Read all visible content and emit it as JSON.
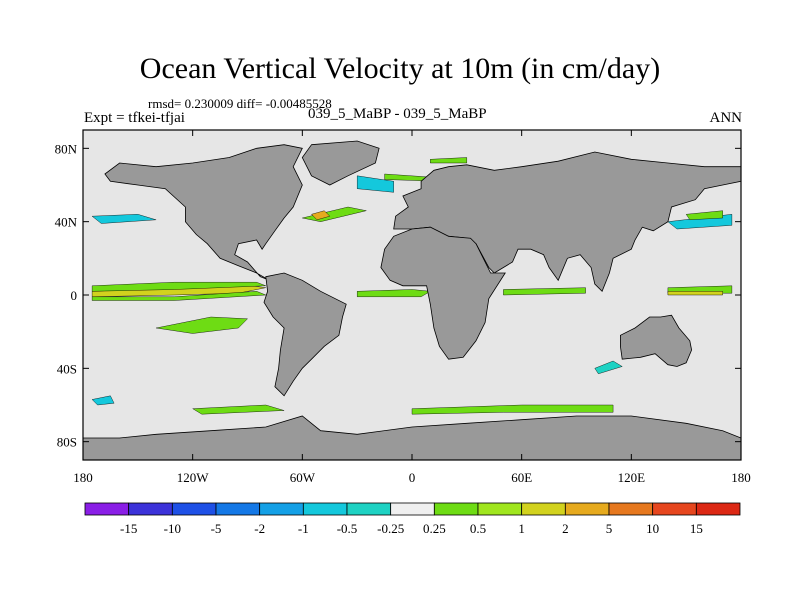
{
  "title": "Ocean Vertical Velocity at 10m (in cm/day)",
  "stats": "rmsd= 0.230009 diff= -0.00485528",
  "expt": "Expt = tfkei-tfjai",
  "case": "039_5_MaBP - 039_5_MaBP",
  "season": "ANN",
  "colors": {
    "land": "#999999",
    "ocean": "#e6e6e6",
    "coast": "#000000"
  },
  "chart_data": {
    "type": "heatmap",
    "xlim": [
      -180,
      180
    ],
    "ylim": [
      -90,
      90
    ],
    "x_ticks": [
      {
        "v": -180,
        "label": "180"
      },
      {
        "v": -120,
        "label": "120W"
      },
      {
        "v": -60,
        "label": "60W"
      },
      {
        "v": 0,
        "label": "0"
      },
      {
        "v": 60,
        "label": "60E"
      },
      {
        "v": 120,
        "label": "120E"
      },
      {
        "v": 180,
        "label": "180"
      }
    ],
    "y_ticks": [
      {
        "v": 80,
        "label": "80N"
      },
      {
        "v": 40,
        "label": "40N"
      },
      {
        "v": 0,
        "label": "0"
      },
      {
        "v": -40,
        "label": "40S"
      },
      {
        "v": -80,
        "label": "80S"
      }
    ],
    "colorbar": {
      "labels": [
        "-15",
        "-10",
        "-5",
        "-2",
        "-1",
        "-0.5",
        "-0.25",
        "0.25",
        "0.5",
        "1",
        "2",
        "5",
        "10",
        "15"
      ],
      "colors": [
        "#8a1ee6",
        "#3c32d9",
        "#1e50e6",
        "#1478e6",
        "#14a0e6",
        "#14c8dc",
        "#1ed2c3",
        "#f0f0f0",
        "#6edc14",
        "#a0e61e",
        "#d2d21e",
        "#e6aa1e",
        "#e6781e",
        "#e6461e",
        "#dc2814"
      ]
    },
    "land": [
      {
        "name": "north-america",
        "pts": [
          [
            -160,
            72
          ],
          [
            -140,
            70
          ],
          [
            -120,
            72
          ],
          [
            -100,
            75
          ],
          [
            -85,
            80
          ],
          [
            -70,
            82
          ],
          [
            -60,
            80
          ],
          [
            -65,
            70
          ],
          [
            -60,
            60
          ],
          [
            -65,
            48
          ],
          [
            -70,
            42
          ],
          [
            -75,
            35
          ],
          [
            -80,
            28
          ],
          [
            -82,
            25
          ],
          [
            -85,
            30
          ],
          [
            -95,
            28
          ],
          [
            -97,
            22
          ],
          [
            -90,
            18
          ],
          [
            -83,
            10
          ],
          [
            -78,
            8
          ],
          [
            -85,
            12
          ],
          [
            -95,
            16
          ],
          [
            -105,
            20
          ],
          [
            -112,
            28
          ],
          [
            -118,
            33
          ],
          [
            -124,
            40
          ],
          [
            -124,
            48
          ],
          [
            -135,
            58
          ],
          [
            -150,
            60
          ],
          [
            -165,
            62
          ],
          [
            -168,
            66
          ]
        ]
      },
      {
        "name": "greenland",
        "pts": [
          [
            -55,
            82
          ],
          [
            -30,
            84
          ],
          [
            -18,
            80
          ],
          [
            -20,
            72
          ],
          [
            -35,
            65
          ],
          [
            -45,
            60
          ],
          [
            -55,
            65
          ],
          [
            -60,
            75
          ]
        ]
      },
      {
        "name": "south-america",
        "pts": [
          [
            -80,
            10
          ],
          [
            -70,
            12
          ],
          [
            -60,
            8
          ],
          [
            -50,
            2
          ],
          [
            -36,
            -5
          ],
          [
            -38,
            -12
          ],
          [
            -40,
            -22
          ],
          [
            -48,
            -28
          ],
          [
            -55,
            -35
          ],
          [
            -60,
            -40
          ],
          [
            -65,
            -47
          ],
          [
            -70,
            -55
          ],
          [
            -75,
            -50
          ],
          [
            -73,
            -40
          ],
          [
            -72,
            -30
          ],
          [
            -70,
            -18
          ],
          [
            -76,
            -12
          ],
          [
            -81,
            -4
          ],
          [
            -79,
            2
          ]
        ]
      },
      {
        "name": "eurasia",
        "pts": [
          [
            -10,
            36
          ],
          [
            -9,
            43
          ],
          [
            -2,
            48
          ],
          [
            -5,
            54
          ],
          [
            5,
            58
          ],
          [
            5,
            62
          ],
          [
            12,
            68
          ],
          [
            20,
            70
          ],
          [
            30,
            71
          ],
          [
            45,
            68
          ],
          [
            60,
            70
          ],
          [
            80,
            73
          ],
          [
            100,
            78
          ],
          [
            120,
            74
          ],
          [
            140,
            72
          ],
          [
            160,
            70
          ],
          [
            180,
            70
          ],
          [
            180,
            62
          ],
          [
            170,
            60
          ],
          [
            160,
            58
          ],
          [
            155,
            52
          ],
          [
            142,
            48
          ],
          [
            140,
            40
          ],
          [
            132,
            35
          ],
          [
            126,
            37
          ],
          [
            122,
            30
          ],
          [
            120,
            25
          ],
          [
            110,
            20
          ],
          [
            108,
            12
          ],
          [
            104,
            2
          ],
          [
            100,
            6
          ],
          [
            98,
            15
          ],
          [
            92,
            22
          ],
          [
            85,
            20
          ],
          [
            80,
            8
          ],
          [
            75,
            15
          ],
          [
            72,
            22
          ],
          [
            65,
            25
          ],
          [
            58,
            25
          ],
          [
            55,
            18
          ],
          [
            45,
            12
          ],
          [
            42,
            15
          ],
          [
            35,
            28
          ],
          [
            30,
            31
          ],
          [
            20,
            32
          ],
          [
            10,
            37
          ],
          [
            0,
            36
          ]
        ]
      },
      {
        "name": "africa",
        "pts": [
          [
            -17,
            15
          ],
          [
            -15,
            25
          ],
          [
            -10,
            32
          ],
          [
            0,
            36
          ],
          [
            10,
            37
          ],
          [
            20,
            32
          ],
          [
            32,
            31
          ],
          [
            35,
            28
          ],
          [
            43,
            12
          ],
          [
            51,
            12
          ],
          [
            42,
            -2
          ],
          [
            40,
            -15
          ],
          [
            35,
            -25
          ],
          [
            28,
            -34
          ],
          [
            20,
            -35
          ],
          [
            15,
            -28
          ],
          [
            12,
            -18
          ],
          [
            10,
            -5
          ],
          [
            8,
            5
          ],
          [
            -5,
            5
          ],
          [
            -12,
            8
          ]
        ]
      },
      {
        "name": "australia",
        "pts": [
          [
            114,
            -22
          ],
          [
            122,
            -18
          ],
          [
            130,
            -12
          ],
          [
            136,
            -12
          ],
          [
            142,
            -11
          ],
          [
            146,
            -18
          ],
          [
            152,
            -25
          ],
          [
            153,
            -30
          ],
          [
            150,
            -37
          ],
          [
            145,
            -39
          ],
          [
            140,
            -38
          ],
          [
            133,
            -32
          ],
          [
            125,
            -34
          ],
          [
            115,
            -35
          ],
          [
            114,
            -28
          ]
        ]
      },
      {
        "name": "antarctica",
        "pts": [
          [
            -180,
            -78
          ],
          [
            -160,
            -78
          ],
          [
            -140,
            -76
          ],
          [
            -110,
            -74
          ],
          [
            -80,
            -72
          ],
          [
            -60,
            -66
          ],
          [
            -50,
            -74
          ],
          [
            -30,
            -76
          ],
          [
            0,
            -72
          ],
          [
            30,
            -70
          ],
          [
            60,
            -68
          ],
          [
            90,
            -66
          ],
          [
            120,
            -66
          ],
          [
            150,
            -70
          ],
          [
            170,
            -74
          ],
          [
            180,
            -78
          ],
          [
            180,
            -90
          ],
          [
            -180,
            -90
          ]
        ]
      }
    ],
    "anomalies": [
      {
        "pts": [
          [
            -175,
            2
          ],
          [
            -130,
            4
          ],
          [
            -95,
            6
          ],
          [
            -80,
            4
          ],
          [
            -95,
            1
          ],
          [
            -130,
            0
          ],
          [
            -175,
            -1
          ]
        ],
        "color": "#d2d21e"
      },
      {
        "pts": [
          [
            -175,
            5
          ],
          [
            -130,
            7
          ],
          [
            -85,
            7
          ],
          [
            -80,
            5
          ],
          [
            -130,
            3
          ],
          [
            -175,
            2
          ]
        ],
        "color": "#6edc14"
      },
      {
        "pts": [
          [
            -175,
            -1
          ],
          [
            -130,
            -1
          ],
          [
            -85,
            2
          ],
          [
            -80,
            0
          ],
          [
            -130,
            -3
          ],
          [
            -175,
            -3
          ]
        ],
        "color": "#6edc14"
      },
      {
        "pts": [
          [
            -140,
            -18
          ],
          [
            -110,
            -12
          ],
          [
            -90,
            -13
          ],
          [
            -95,
            -18
          ],
          [
            -120,
            -21
          ]
        ],
        "color": "#6edc14"
      },
      {
        "pts": [
          [
            -30,
            2
          ],
          [
            0,
            3
          ],
          [
            10,
            2
          ],
          [
            5,
            -1
          ],
          [
            -30,
            -1
          ]
        ],
        "color": "#6edc14"
      },
      {
        "pts": [
          [
            50,
            3
          ],
          [
            95,
            4
          ],
          [
            95,
            1
          ],
          [
            50,
            0
          ]
        ],
        "color": "#6edc14"
      },
      {
        "pts": [
          [
            140,
            4
          ],
          [
            175,
            5
          ],
          [
            175,
            1
          ],
          [
            140,
            1
          ]
        ],
        "color": "#6edc14"
      },
      {
        "pts": [
          [
            140,
            2
          ],
          [
            170,
            2
          ],
          [
            170,
            0
          ],
          [
            140,
            0
          ]
        ],
        "color": "#d2d21e"
      },
      {
        "pts": [
          [
            -60,
            42
          ],
          [
            -35,
            48
          ],
          [
            -25,
            46
          ],
          [
            -50,
            40
          ]
        ],
        "color": "#6edc14"
      },
      {
        "pts": [
          [
            -55,
            44
          ],
          [
            -48,
            46
          ],
          [
            -45,
            43
          ],
          [
            -52,
            41
          ]
        ],
        "color": "#e6aa1e"
      },
      {
        "pts": [
          [
            140,
            40
          ],
          [
            175,
            44
          ],
          [
            175,
            38
          ],
          [
            145,
            36
          ]
        ],
        "color": "#14c8dc"
      },
      {
        "pts": [
          [
            150,
            44
          ],
          [
            170,
            46
          ],
          [
            170,
            42
          ],
          [
            152,
            41
          ]
        ],
        "color": "#6edc14"
      },
      {
        "pts": [
          [
            -175,
            43
          ],
          [
            -150,
            44
          ],
          [
            -140,
            41
          ],
          [
            -170,
            39
          ]
        ],
        "color": "#14c8dc"
      },
      {
        "pts": [
          [
            -30,
            65
          ],
          [
            -10,
            62
          ],
          [
            -10,
            56
          ],
          [
            -30,
            58
          ]
        ],
        "color": "#14c8dc"
      },
      {
        "pts": [
          [
            -15,
            66
          ],
          [
            15,
            64
          ],
          [
            15,
            62
          ],
          [
            -15,
            63
          ]
        ],
        "color": "#6edc14"
      },
      {
        "pts": [
          [
            10,
            74
          ],
          [
            30,
            75
          ],
          [
            30,
            72
          ],
          [
            10,
            72
          ]
        ],
        "color": "#6edc14"
      },
      {
        "pts": [
          [
            0,
            -62
          ],
          [
            60,
            -60
          ],
          [
            110,
            -60
          ],
          [
            110,
            -64
          ],
          [
            50,
            -64
          ],
          [
            0,
            -65
          ]
        ],
        "color": "#6edc14"
      },
      {
        "pts": [
          [
            -120,
            -62
          ],
          [
            -80,
            -60
          ],
          [
            -70,
            -63
          ],
          [
            -115,
            -65
          ]
        ],
        "color": "#6edc14"
      },
      {
        "pts": [
          [
            100,
            -40
          ],
          [
            110,
            -36
          ],
          [
            115,
            -39
          ],
          [
            102,
            -43
          ]
        ],
        "color": "#1ed2c3"
      },
      {
        "pts": [
          [
            -175,
            -57
          ],
          [
            -165,
            -55
          ],
          [
            -163,
            -59
          ],
          [
            -172,
            -60
          ]
        ],
        "color": "#14c8dc"
      }
    ]
  }
}
